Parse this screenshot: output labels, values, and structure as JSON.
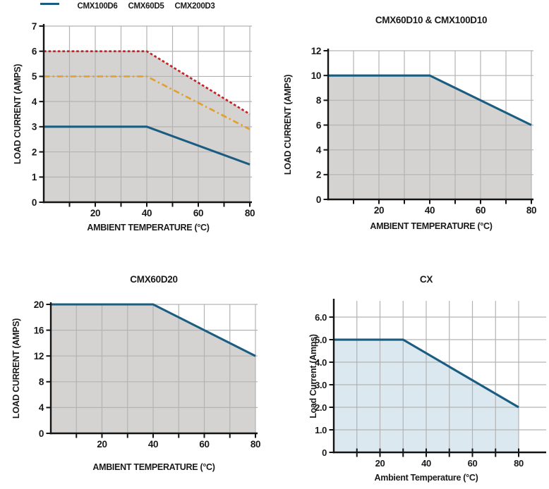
{
  "figure": {
    "background": "#ffffff",
    "axis_color": "#141414",
    "grid_color": "#b3b3b3",
    "text_color": "#1a1a1a"
  },
  "chart_data": [
    {
      "type": "line",
      "title": "",
      "xlabel": "AMBIENT TEMPERATURE (°C)",
      "ylabel": "LOAD CURRENT (AMPS)",
      "xlim": [
        0,
        80
      ],
      "ylim": [
        0,
        7
      ],
      "x_ticks": [
        10,
        20,
        30,
        40,
        50,
        60,
        70,
        80
      ],
      "x_tick_labels": [
        "",
        "20",
        "",
        "40",
        "",
        "60",
        "",
        "80"
      ],
      "y_ticks": [
        0,
        1,
        2,
        3,
        4,
        5,
        6,
        7
      ],
      "y_tick_labels": [
        "0",
        "1",
        "2",
        "3",
        "4",
        "5",
        "6",
        "7"
      ],
      "grid": true,
      "legend_position": "top",
      "area_fill": "#d4d3d1",
      "series": [
        {
          "name": "CMX100D6",
          "color": "#c32227",
          "style": "dashed",
          "fill": true,
          "points": [
            [
              0,
              6
            ],
            [
              40,
              6
            ],
            [
              80,
              3.5
            ]
          ]
        },
        {
          "name": "CMX60D5",
          "color": "#e2a12f",
          "style": "dashdot",
          "points": [
            [
              0,
              5
            ],
            [
              40,
              5
            ],
            [
              80,
              2.9
            ]
          ]
        },
        {
          "name": "CMX200D3",
          "color": "#1a5d80",
          "style": "solid",
          "points": [
            [
              0,
              3
            ],
            [
              40,
              3
            ],
            [
              80,
              1.5
            ]
          ]
        }
      ]
    },
    {
      "type": "line",
      "title": "CMX60D10 & CMX100D10",
      "xlabel": "AMBIENT TEMPERATURE (°C)",
      "ylabel": "LOAD CURRENT (AMPS)",
      "xlim": [
        0,
        80
      ],
      "ylim": [
        0,
        12
      ],
      "x_ticks": [
        10,
        20,
        30,
        40,
        50,
        60,
        70,
        80
      ],
      "x_tick_labels": [
        "",
        "20",
        "",
        "40",
        "",
        "60",
        "",
        "80"
      ],
      "y_ticks": [
        0,
        2,
        4,
        6,
        8,
        10,
        12
      ],
      "y_tick_labels": [
        "0",
        "2",
        "4",
        "6",
        "8",
        "10",
        "12"
      ],
      "grid": true,
      "area_fill": "#d4d3d1",
      "series": [
        {
          "name": "CMX60D10 & CMX100D10",
          "color": "#1a5d80",
          "style": "solid",
          "fill": true,
          "points": [
            [
              0,
              10
            ],
            [
              40,
              10
            ],
            [
              80,
              6
            ]
          ]
        }
      ]
    },
    {
      "type": "line",
      "title": "CMX60D20",
      "xlabel": "AMBIENT TEMPERATURE (°C)",
      "ylabel": "LOAD CURRENT (AMPS)",
      "xlim": [
        0,
        80
      ],
      "ylim": [
        0,
        20
      ],
      "x_ticks": [
        10,
        20,
        30,
        40,
        50,
        60,
        70,
        80
      ],
      "x_tick_labels": [
        "",
        "20",
        "",
        "40",
        "",
        "60",
        "",
        "80"
      ],
      "y_ticks": [
        0,
        4,
        8,
        12,
        16,
        20
      ],
      "y_tick_labels": [
        "0",
        "4",
        "8",
        "12",
        "16",
        "20"
      ],
      "grid": true,
      "area_fill": "#d4d3d1",
      "series": [
        {
          "name": "CMX60D20",
          "color": "#1a5d80",
          "style": "solid",
          "fill": true,
          "points": [
            [
              0,
              20
            ],
            [
              40,
              20
            ],
            [
              80,
              12
            ]
          ]
        }
      ]
    },
    {
      "type": "line",
      "title": "CX",
      "xlabel": "Ambient Temperature (°C)",
      "ylabel": "Load Current (Amps)",
      "xlim": [
        0,
        92
      ],
      "ylim": [
        0,
        6.72
      ],
      "x_ticks": [
        10,
        20,
        30,
        40,
        50,
        60,
        70,
        80
      ],
      "x_tick_labels": [
        "",
        "20",
        "",
        "40",
        "",
        "60",
        "",
        "80"
      ],
      "y_ticks": [
        0,
        1,
        2,
        3,
        4,
        5,
        6
      ],
      "y_tick_labels": [
        "0",
        "1.0",
        "2.0",
        "3.0",
        "4.0",
        "5.0",
        "6.0"
      ],
      "grid": true,
      "area_fill": "#dce8f0",
      "series": [
        {
          "name": "CX",
          "color": "#1a5d80",
          "style": "solid",
          "fill": true,
          "points": [
            [
              0,
              5
            ],
            [
              30,
              5
            ],
            [
              80,
              2
            ]
          ]
        }
      ]
    }
  ]
}
